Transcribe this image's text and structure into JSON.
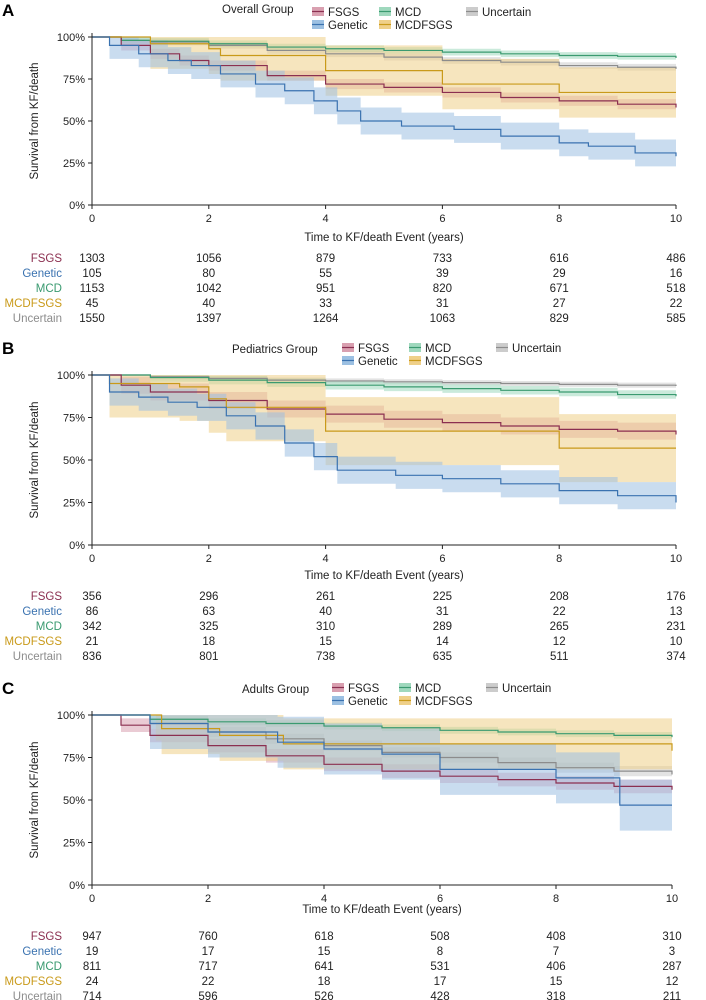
{
  "colors": {
    "FSGS": "#8b2f50",
    "Genetic": "#3a72b0",
    "MCD": "#3a9a70",
    "MCDFSGS": "#c99a1a",
    "Uncertain": "#8c8c8c",
    "FSGS_fill": "#d9a0b0",
    "Genetic_fill": "#9cc0e2",
    "MCD_fill": "#9fd8bd",
    "MCDFSGS_fill": "#efd089",
    "Uncertain_fill": "#cccccc"
  },
  "chart_data": [
    {
      "id": "A",
      "type": "line",
      "panel_letter": "A",
      "title": "Overall Group",
      "xlabel": "Time to KF/death Event (years)",
      "ylabel": "Survival from KF/death",
      "xlim": [
        0,
        10
      ],
      "ylim": [
        0,
        1
      ],
      "x_ticks": [
        "0",
        "2",
        "4",
        "6",
        "8",
        "10"
      ],
      "y_ticks": [
        "0%",
        "25%",
        "50%",
        "75%",
        "100%"
      ],
      "legend": [
        "FSGS",
        "MCD",
        "Uncertain",
        "Genetic",
        "MCDFSGS"
      ],
      "series": [
        {
          "name": "Uncertain",
          "x": [
            0,
            0.5,
            1,
            2,
            3,
            4,
            5,
            6,
            7,
            8,
            9,
            10
          ],
          "y": [
            1.0,
            0.98,
            0.97,
            0.95,
            0.92,
            0.9,
            0.88,
            0.86,
            0.85,
            0.83,
            0.82,
            0.81
          ],
          "band": 0.02
        },
        {
          "name": "MCD",
          "x": [
            0,
            0.5,
            1,
            2,
            3,
            4,
            5,
            6,
            7,
            8,
            9,
            10
          ],
          "y": [
            1.0,
            0.98,
            0.975,
            0.96,
            0.94,
            0.93,
            0.92,
            0.91,
            0.9,
            0.89,
            0.885,
            0.875
          ],
          "band": 0.02
        },
        {
          "name": "FSGS",
          "x": [
            0,
            0.5,
            1,
            1.5,
            2,
            3,
            4,
            5,
            6,
            7,
            8,
            9,
            10
          ],
          "y": [
            1.0,
            0.95,
            0.9,
            0.86,
            0.83,
            0.77,
            0.72,
            0.7,
            0.67,
            0.64,
            0.62,
            0.6,
            0.58
          ],
          "band": 0.03
        },
        {
          "name": "MCDFSGS",
          "x": [
            0,
            1,
            2,
            2.2,
            3.5,
            4,
            5.5,
            6,
            7.2,
            8,
            10
          ],
          "y": [
            1.0,
            0.96,
            0.93,
            0.89,
            0.89,
            0.8,
            0.8,
            0.72,
            0.72,
            0.67,
            0.67
          ],
          "band": 0.15
        },
        {
          "name": "Genetic",
          "x": [
            0,
            0.3,
            0.8,
            1.3,
            1.7,
            2.2,
            2.8,
            3.3,
            3.8,
            4.2,
            4.6,
            5.3,
            6.2,
            7,
            8,
            8.5,
            9.3,
            10
          ],
          "y": [
            1.0,
            0.95,
            0.9,
            0.86,
            0.83,
            0.78,
            0.72,
            0.68,
            0.62,
            0.56,
            0.5,
            0.47,
            0.45,
            0.41,
            0.37,
            0.35,
            0.31,
            0.29
          ],
          "band": 0.08
        }
      ],
      "risk_table": {
        "times": [
          "0",
          "2",
          "4",
          "6",
          "8",
          "10"
        ],
        "rows": [
          {
            "label": "FSGS",
            "values": [
              "1303",
              "1056",
              "879",
              "733",
              "616",
              "486"
            ]
          },
          {
            "label": "Genetic",
            "values": [
              "105",
              "80",
              "55",
              "39",
              "29",
              "16"
            ]
          },
          {
            "label": "MCD",
            "values": [
              "1153",
              "1042",
              "951",
              "820",
              "671",
              "518"
            ]
          },
          {
            "label": "MCDFSGS",
            "values": [
              "45",
              "40",
              "33",
              "31",
              "27",
              "22"
            ]
          },
          {
            "label": "Uncertain",
            "values": [
              "1550",
              "1397",
              "1264",
              "1063",
              "829",
              "585"
            ]
          }
        ]
      }
    },
    {
      "id": "B",
      "type": "line",
      "panel_letter": "B",
      "title": "Pediatrics Group",
      "xlabel": "Time to KF/death Event (years)",
      "ylabel": "Survival from KF/death",
      "xlim": [
        0,
        10
      ],
      "ylim": [
        0,
        1
      ],
      "x_ticks": [
        "0",
        "2",
        "4",
        "6",
        "8",
        "10"
      ],
      "y_ticks": [
        "0%",
        "25%",
        "50%",
        "75%",
        "100%"
      ],
      "legend": [
        "FSGS",
        "MCD",
        "Uncertain",
        "Genetic",
        "MCDFSGS"
      ],
      "series": [
        {
          "name": "Uncertain",
          "x": [
            0,
            1,
            2,
            3,
            4,
            5,
            6,
            7,
            8,
            9,
            10
          ],
          "y": [
            1.0,
            0.99,
            0.98,
            0.97,
            0.965,
            0.96,
            0.955,
            0.95,
            0.945,
            0.94,
            0.935
          ],
          "band": 0.015
        },
        {
          "name": "MCD",
          "x": [
            0,
            1,
            2,
            3,
            4,
            5,
            6,
            7,
            8,
            9,
            10
          ],
          "y": [
            1.0,
            0.985,
            0.97,
            0.955,
            0.94,
            0.93,
            0.92,
            0.91,
            0.9,
            0.885,
            0.875
          ],
          "band": 0.025
        },
        {
          "name": "FSGS",
          "x": [
            0,
            0.5,
            1,
            2,
            3,
            4,
            5,
            6,
            7,
            8,
            9,
            10
          ],
          "y": [
            1.0,
            0.94,
            0.9,
            0.85,
            0.8,
            0.77,
            0.74,
            0.72,
            0.7,
            0.68,
            0.67,
            0.65
          ],
          "band": 0.05
        },
        {
          "name": "MCDFSGS",
          "x": [
            0,
            0.3,
            1.5,
            2,
            2.3,
            3.8,
            4,
            7.3,
            8,
            10
          ],
          "y": [
            1.0,
            0.95,
            0.93,
            0.86,
            0.81,
            0.81,
            0.67,
            0.67,
            0.57,
            0.57
          ],
          "band": 0.2
        },
        {
          "name": "Genetic",
          "x": [
            0,
            0.3,
            0.8,
            1.3,
            1.8,
            2.3,
            2.8,
            3.3,
            3.8,
            4.2,
            4.6,
            5.2,
            6,
            7,
            8,
            9,
            10
          ],
          "y": [
            1.0,
            0.9,
            0.87,
            0.84,
            0.81,
            0.76,
            0.7,
            0.6,
            0.52,
            0.44,
            0.44,
            0.41,
            0.39,
            0.36,
            0.32,
            0.29,
            0.25
          ],
          "band": 0.08
        }
      ],
      "risk_table": {
        "times": [
          "0",
          "2",
          "4",
          "6",
          "8",
          "10"
        ],
        "rows": [
          {
            "label": "FSGS",
            "values": [
              "356",
              "296",
              "261",
              "225",
              "208",
              "176"
            ]
          },
          {
            "label": "Genetic",
            "values": [
              "86",
              "63",
              "40",
              "31",
              "22",
              "13"
            ]
          },
          {
            "label": "MCD",
            "values": [
              "342",
              "325",
              "310",
              "289",
              "265",
              "231"
            ]
          },
          {
            "label": "MCDFSGS",
            "values": [
              "21",
              "18",
              "15",
              "14",
              "12",
              "10"
            ]
          },
          {
            "label": "Uncertain",
            "values": [
              "836",
              "801",
              "738",
              "635",
              "511",
              "374"
            ]
          }
        ]
      }
    },
    {
      "id": "C",
      "type": "line",
      "panel_letter": "C",
      "title": "Adults Group",
      "xlabel": "Time to KF/death Event (years)",
      "ylabel": "Survival from KF/death",
      "xlim": [
        0,
        10
      ],
      "ylim": [
        0,
        1
      ],
      "x_ticks": [
        "0",
        "2",
        "4",
        "6",
        "8",
        "10"
      ],
      "y_ticks": [
        "0%",
        "25%",
        "50%",
        "75%",
        "100%"
      ],
      "legend": [
        "FSGS",
        "MCD",
        "Uncertain",
        "Genetic",
        "MCDFSGS"
      ],
      "series": [
        {
          "name": "Uncertain",
          "x": [
            0,
            1,
            2,
            3,
            4,
            5,
            6,
            7,
            8,
            9,
            10
          ],
          "y": [
            1.0,
            0.95,
            0.9,
            0.86,
            0.82,
            0.78,
            0.75,
            0.72,
            0.69,
            0.67,
            0.65
          ],
          "band": 0.03
        },
        {
          "name": "MCD",
          "x": [
            0,
            1,
            2,
            3,
            4,
            5,
            6,
            7,
            8,
            9,
            10
          ],
          "y": [
            1.0,
            0.975,
            0.96,
            0.95,
            0.935,
            0.925,
            0.91,
            0.9,
            0.89,
            0.88,
            0.87
          ],
          "band": 0.02
        },
        {
          "name": "FSGS",
          "x": [
            0,
            0.5,
            1,
            2,
            3,
            4,
            5,
            6,
            7,
            8,
            9,
            10
          ],
          "y": [
            1.0,
            0.94,
            0.88,
            0.82,
            0.76,
            0.71,
            0.67,
            0.64,
            0.62,
            0.6,
            0.58,
            0.56
          ],
          "band": 0.04
        },
        {
          "name": "MCDFSGS",
          "x": [
            0,
            1.1,
            1.2,
            2.1,
            2.2,
            3.2,
            3.3,
            6,
            10
          ],
          "y": [
            1.0,
            1.0,
            0.92,
            0.92,
            0.88,
            0.88,
            0.83,
            0.83,
            0.79
          ],
          "band": 0.15
        },
        {
          "name": "Genetic",
          "x": [
            0,
            1,
            2,
            3,
            3.2,
            4,
            5,
            5.9,
            6,
            7,
            8,
            9,
            9.1,
            10
          ],
          "y": [
            1.0,
            0.95,
            0.9,
            0.9,
            0.84,
            0.8,
            0.77,
            0.77,
            0.68,
            0.68,
            0.63,
            0.63,
            0.47,
            0.47
          ],
          "band": 0.15
        }
      ],
      "risk_table": {
        "times": [
          "0",
          "2",
          "4",
          "6",
          "8",
          "10"
        ],
        "rows": [
          {
            "label": "FSGS",
            "values": [
              "947",
              "760",
              "618",
              "508",
              "408",
              "310"
            ]
          },
          {
            "label": "Genetic",
            "values": [
              "19",
              "17",
              "15",
              "8",
              "7",
              "3"
            ]
          },
          {
            "label": "MCD",
            "values": [
              "811",
              "717",
              "641",
              "531",
              "406",
              "287"
            ]
          },
          {
            "label": "MCDFSGS",
            "values": [
              "24",
              "22",
              "18",
              "17",
              "15",
              "12"
            ]
          },
          {
            "label": "Uncertain",
            "values": [
              "714",
              "596",
              "526",
              "428",
              "318",
              "211"
            ]
          }
        ]
      }
    }
  ]
}
